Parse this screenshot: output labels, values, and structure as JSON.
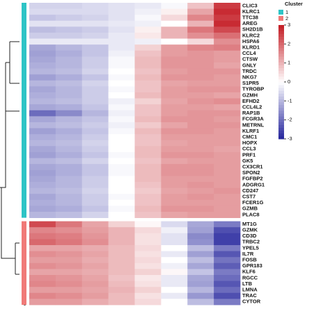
{
  "chart_data": {
    "type": "heatmap",
    "zlim": [
      -3,
      3
    ],
    "zticks": [
      3,
      2,
      1,
      0,
      -1,
      -2,
      -3
    ],
    "colors": {
      "low": "#23239c",
      "mid": "#ffffff",
      "high": "#c41c24"
    },
    "legend_title": "Cluster",
    "cluster_axis_label": "Cluster",
    "clusters": [
      {
        "name": "1",
        "color": "#2ec4c6",
        "genes": [
          "CLIC3",
          "KLRC1",
          "TTC38",
          "AREG",
          "SH2D1B",
          "KLRC2",
          "HSPA6",
          "KLRD1",
          "CCL4",
          "CTSW",
          "GNLY",
          "TRDC",
          "NKG7",
          "S1PR5",
          "TYROBP",
          "GZMH",
          "EFHD2",
          "CCL4L2",
          "RAP1B",
          "FCGR3A",
          "METRNL",
          "KLRF1",
          "CMC1",
          "HOPX",
          "CCL3",
          "PRF1",
          "GK5",
          "CX3CR1",
          "SPON2",
          "FGFBP2",
          "ADGRG1",
          "CD247",
          "CST7",
          "FCER1G",
          "GZMB",
          "PLAC8"
        ],
        "values": [
          [
            -0.6,
            -0.6,
            -0.5,
            -0.4,
            -0.3,
            -0.1,
            0.8,
            2.6
          ],
          [
            -0.5,
            -0.5,
            -0.5,
            -0.4,
            -0.2,
            0.2,
            1.2,
            2.8
          ],
          [
            -0.8,
            -0.7,
            -0.6,
            -0.4,
            -0.1,
            0.5,
            1.6,
            2.6
          ],
          [
            -0.4,
            -0.4,
            -0.4,
            -0.3,
            -0.2,
            0,
            1,
            2.8
          ],
          [
            -0.9,
            -0.8,
            -0.7,
            -0.4,
            0.2,
            1,
            1.8,
            2.4
          ],
          [
            -0.7,
            -0.7,
            -0.6,
            -0.3,
            0.3,
            1,
            1.5,
            1.9
          ],
          [
            -0.3,
            -0.3,
            -0.3,
            -0.3,
            -0.2,
            0,
            0.5,
            1.5
          ],
          [
            -1.2,
            -1,
            -0.8,
            -0.3,
            0.6,
            1.3,
            1.6,
            1.7
          ],
          [
            -1.3,
            -1.1,
            -0.8,
            -0.2,
            0.8,
            1.3,
            1.4,
            1.3
          ],
          [
            -1.2,
            -1,
            -0.7,
            -0.1,
            0.9,
            1.4,
            1.4,
            1.3
          ],
          [
            -1.1,
            -1,
            -0.7,
            -0.1,
            0.9,
            1.4,
            1.4,
            1.2
          ],
          [
            -1,
            -0.9,
            -0.6,
            0,
            0.8,
            1.3,
            1.4,
            1.4
          ],
          [
            -1.3,
            -1.1,
            -0.8,
            -0.1,
            0.9,
            1.4,
            1.4,
            1.3
          ],
          [
            -1,
            -0.9,
            -0.6,
            0,
            0.8,
            1.2,
            1.3,
            1.3
          ],
          [
            -1.2,
            -1,
            -0.7,
            -0.1,
            0.8,
            1.3,
            1.4,
            1.4
          ],
          [
            -1.1,
            -1,
            -0.7,
            0,
            0.9,
            1.3,
            1.3,
            1.2
          ],
          [
            -1,
            -0.9,
            -0.7,
            -0.2,
            0.6,
            1.2,
            1.4,
            1.5
          ],
          [
            -1.2,
            -1.1,
            -0.8,
            -0.1,
            0.8,
            1.3,
            1.3,
            1.2
          ],
          [
            -2,
            -1.6,
            -1,
            -0.2,
            0.8,
            1.3,
            1.4,
            1.4
          ],
          [
            -1.2,
            -1,
            -0.8,
            -0.1,
            0.9,
            1.4,
            1.4,
            1.3
          ],
          [
            -1,
            -0.9,
            -0.7,
            -0.2,
            0.7,
            1.2,
            1.4,
            1.4
          ],
          [
            -1.3,
            -1.1,
            -0.8,
            -0.1,
            0.9,
            1.4,
            1.4,
            1.3
          ],
          [
            -1.1,
            -1,
            -0.7,
            0,
            0.8,
            1.3,
            1.3,
            1.3
          ],
          [
            -1,
            -0.9,
            -0.6,
            0,
            0.8,
            1.2,
            1.3,
            1.3
          ],
          [
            -1.2,
            -1,
            -0.7,
            0,
            0.9,
            1.3,
            1.3,
            1.2
          ],
          [
            -1.3,
            -1.1,
            -0.8,
            -0.1,
            0.9,
            1.4,
            1.4,
            1.3
          ],
          [
            -1,
            -0.9,
            -0.6,
            0,
            0.8,
            1.2,
            1.3,
            1.3
          ],
          [
            -1.2,
            -1.1,
            -0.8,
            -0.1,
            0.9,
            1.4,
            1.4,
            1.3
          ],
          [
            -1.3,
            -1.1,
            -0.8,
            -0.1,
            0.9,
            1.4,
            1.4,
            1.3
          ],
          [
            -1.2,
            -1,
            -0.7,
            0,
            0.9,
            1.3,
            1.3,
            1.3
          ],
          [
            -1.1,
            -1,
            -0.7,
            0,
            0.8,
            1.3,
            1.4,
            1.3
          ],
          [
            -1,
            -0.9,
            -0.6,
            0,
            0.7,
            1.2,
            1.3,
            1.4
          ],
          [
            -1.2,
            -1,
            -0.7,
            -0.1,
            0.8,
            1.3,
            1.4,
            1.3
          ],
          [
            -1.1,
            -1,
            -0.7,
            0,
            0.8,
            1.3,
            1.3,
            1.3
          ],
          [
            -1.2,
            -1.1,
            -0.8,
            -0.1,
            0.9,
            1.4,
            1.4,
            1.3
          ],
          [
            -1,
            -0.9,
            -0.6,
            0,
            0.8,
            1.2,
            1.3,
            1.3
          ]
        ]
      },
      {
        "name": "2",
        "color": "#f07a78",
        "genes": [
          "MT1G",
          "GZMK",
          "CD3D",
          "TRBC2",
          "YPEL5",
          "IL7R",
          "FOSB",
          "GPR183",
          "KLF6",
          "RGCC",
          "LTB",
          "LMNA",
          "TRAC",
          "CYTOR"
        ],
        "values": [
          [
            2.4,
            1.8,
            1.2,
            0.6,
            0.1,
            -0.5,
            -1.2,
            -1.8
          ],
          [
            1.6,
            1.5,
            1.3,
            1,
            0.5,
            -0.2,
            -1.3,
            -2.4
          ],
          [
            1.8,
            1.7,
            1.4,
            1,
            0.4,
            -0.4,
            -1.6,
            -2.6
          ],
          [
            2,
            1.8,
            1.5,
            1,
            0.4,
            -0.4,
            -1.5,
            -2.6
          ],
          [
            1.2,
            1.2,
            1.1,
            0.9,
            0.5,
            0,
            -0.9,
            -1.8
          ],
          [
            1.5,
            1.4,
            1.2,
            0.9,
            0.4,
            -0.3,
            -1.3,
            -2.3
          ],
          [
            1.3,
            1.3,
            1.1,
            0.9,
            0.5,
            0,
            -0.9,
            -1.9
          ],
          [
            1.5,
            1.4,
            1.2,
            0.9,
            0.4,
            -0.2,
            -1.2,
            -2.2
          ],
          [
            1.2,
            1.2,
            1.1,
            0.9,
            0.6,
            0.1,
            -0.8,
            -1.8
          ],
          [
            1.5,
            1.4,
            1.2,
            0.8,
            0.3,
            -0.3,
            -1.2,
            -2
          ],
          [
            1.6,
            1.5,
            1.3,
            0.9,
            0.4,
            -0.3,
            -1.3,
            -2.3
          ],
          [
            1.3,
            1.3,
            1.2,
            1,
            0.6,
            0,
            -1,
            -2
          ],
          [
            1.6,
            1.5,
            1.3,
            0.9,
            0.4,
            -0.3,
            -1.4,
            -2.4
          ],
          [
            1.3,
            1.3,
            1.1,
            0.9,
            0.5,
            0,
            -0.9,
            -1.8
          ]
        ]
      }
    ]
  }
}
